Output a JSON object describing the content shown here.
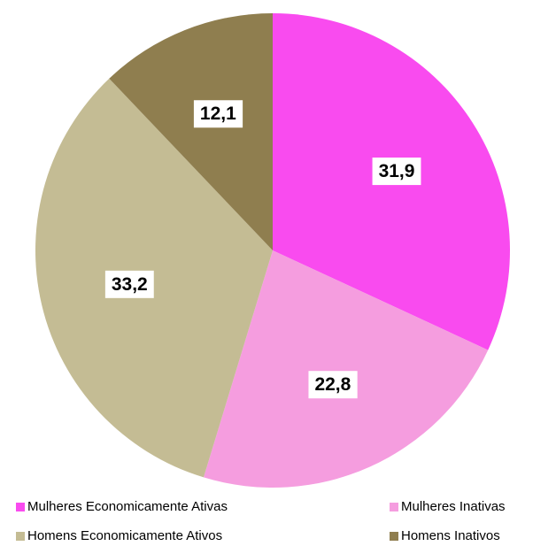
{
  "chart_data": {
    "type": "pie",
    "categories": [
      "Mulheres Economicamente Ativas",
      "Mulheres Inativas",
      "Homens Economicamente Ativos",
      "Homens Inativos"
    ],
    "values": [
      31.9,
      22.8,
      33.2,
      12.1
    ],
    "value_labels": [
      "31,9",
      "22,8",
      "33,2",
      "12,1"
    ],
    "colors": [
      "#f94bef",
      "#f59ddf",
      "#c4bc94",
      "#8f7e4f"
    ],
    "legend": "bottom"
  }
}
